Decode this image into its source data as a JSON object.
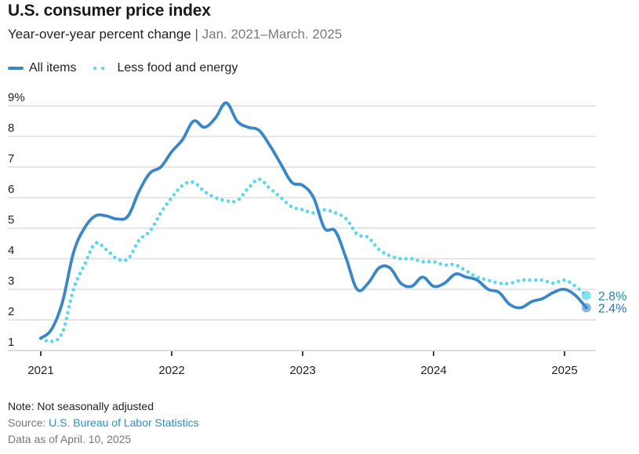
{
  "header": {
    "title": "U.S. consumer price index",
    "subtitle_main": "Year-over-year percent change",
    "subtitle_sep": "|",
    "subtitle_range": "Jan. 2021–March. 2025"
  },
  "legend": {
    "items": [
      {
        "label": "All items",
        "style": "solid",
        "color": "#3a87c8"
      },
      {
        "label": "Less food and energy",
        "style": "dotted",
        "color": "#5bd8ea"
      }
    ]
  },
  "footer": {
    "note": "Note: Not seasonally adjusted",
    "source_prefix": "Source: ",
    "source_link": "U.S. Bureau of Labor Statistics",
    "as_of": "Data as of April. 10, 2025"
  },
  "chart_data": {
    "type": "line",
    "title": "U.S. consumer price index",
    "subtitle": "Year-over-year percent change | Jan. 2021–March. 2025",
    "xlabel": "",
    "ylabel": "",
    "x_start": "2021-01",
    "x_end": "2025-03",
    "x_ticks": [
      "2021",
      "2022",
      "2023",
      "2024",
      "2025"
    ],
    "y_ticks": [
      "1",
      "2",
      "3",
      "4",
      "5",
      "6",
      "7",
      "8",
      "9%"
    ],
    "ylim": [
      1,
      9
    ],
    "grid": true,
    "legend_position": "top-left",
    "series": [
      {
        "name": "All items",
        "color": "#3a87c8",
        "end_label": "2.4%",
        "values": [
          1.4,
          1.7,
          2.6,
          4.2,
          5.0,
          5.4,
          5.4,
          5.3,
          5.4,
          6.2,
          6.8,
          7.0,
          7.5,
          7.9,
          8.5,
          8.3,
          8.6,
          9.1,
          8.5,
          8.3,
          8.2,
          7.7,
          7.1,
          6.5,
          6.4,
          6.0,
          5.0,
          4.9,
          4.0,
          3.0,
          3.2,
          3.7,
          3.7,
          3.2,
          3.1,
          3.4,
          3.1,
          3.2,
          3.5,
          3.4,
          3.3,
          3.0,
          2.9,
          2.5,
          2.4,
          2.6,
          2.7,
          2.9,
          3.0,
          2.8,
          2.4
        ]
      },
      {
        "name": "Less food and energy",
        "color": "#5bd8ea",
        "end_label": "2.8%",
        "values": [
          1.4,
          1.3,
          1.6,
          3.0,
          3.8,
          4.5,
          4.3,
          4.0,
          4.0,
          4.6,
          4.9,
          5.5,
          6.0,
          6.4,
          6.5,
          6.2,
          6.0,
          5.9,
          5.9,
          6.3,
          6.6,
          6.3,
          6.0,
          5.7,
          5.6,
          5.5,
          5.6,
          5.5,
          5.3,
          4.8,
          4.7,
          4.3,
          4.1,
          4.0,
          4.0,
          3.9,
          3.9,
          3.8,
          3.8,
          3.6,
          3.4,
          3.3,
          3.2,
          3.2,
          3.3,
          3.3,
          3.3,
          3.2,
          3.3,
          3.1,
          2.8
        ]
      }
    ]
  }
}
